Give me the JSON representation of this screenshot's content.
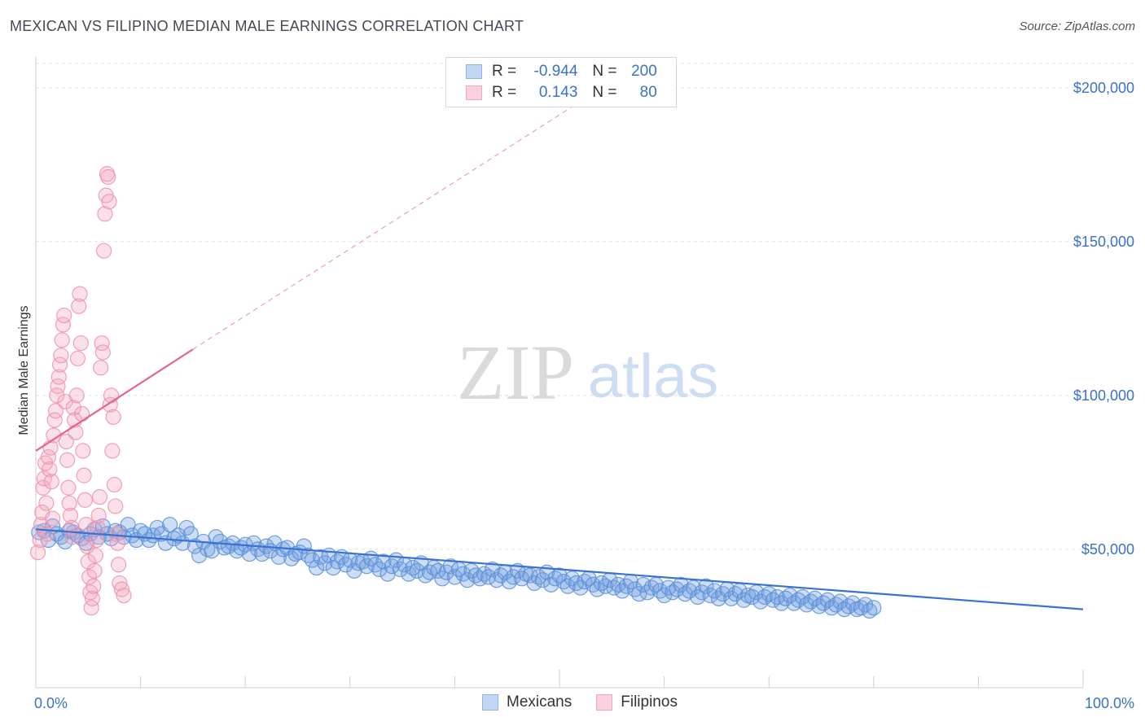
{
  "title": "MEXICAN VS FILIPINO MEDIAN MALE EARNINGS CORRELATION CHART",
  "source": "Source: ZipAtlas.com",
  "watermark": {
    "zip": "ZIP",
    "atlas": "atlas"
  },
  "legend": {
    "r_label": "R =",
    "n_label": "N =",
    "rows": [
      {
        "r": "-0.944",
        "n": "200",
        "color": "#8fb4ea"
      },
      {
        "r": "0.143",
        "n": "80",
        "color": "#f4a6be"
      }
    ]
  },
  "bottom_legend": [
    {
      "label": "Mexicans",
      "color": "#8fb4ea"
    },
    {
      "label": "Filipinos",
      "color": "#f4a6be"
    }
  ],
  "chart_data": {
    "type": "scatter",
    "title": "MEXICAN VS FILIPINO MEDIAN MALE EARNINGS CORRELATION CHART",
    "xlabel": "",
    "ylabel": "Median Male Earnings",
    "xlim": [
      0,
      100
    ],
    "ylim": [
      5000,
      210000
    ],
    "x_tick_labels": [
      "0.0%",
      "100.0%"
    ],
    "y_ticks": [
      50000,
      100000,
      150000,
      200000
    ],
    "y_tick_labels": [
      "$50,000",
      "$100,000",
      "$150,000",
      "$200,000"
    ],
    "grid": true,
    "series": [
      {
        "name": "Mexicans",
        "color": "#6f9fe0",
        "stroke": "#5b8fd8",
        "trend": {
          "x": [
            0,
            100
          ],
          "y": [
            56500,
            30500
          ],
          "color": "#3a72d0"
        },
        "points": [
          [
            0.3,
            55500
          ],
          [
            0.8,
            56000
          ],
          [
            1.2,
            53000
          ],
          [
            1.6,
            57500
          ],
          [
            2.0,
            55000
          ],
          [
            2.4,
            54000
          ],
          [
            2.8,
            52500
          ],
          [
            3.2,
            56000
          ],
          [
            3.6,
            55500
          ],
          [
            4.0,
            54500
          ],
          [
            4.4,
            53500
          ],
          [
            4.8,
            52000
          ],
          [
            5.2,
            55000
          ],
          [
            5.6,
            56500
          ],
          [
            6.0,
            54000
          ],
          [
            6.4,
            57500
          ],
          [
            6.8,
            55000
          ],
          [
            7.2,
            53500
          ],
          [
            7.6,
            56000
          ],
          [
            8.0,
            55500
          ],
          [
            8.4,
            54000
          ],
          [
            8.8,
            58000
          ],
          [
            9.2,
            54500
          ],
          [
            9.6,
            53000
          ],
          [
            10.0,
            56000
          ],
          [
            10.4,
            55000
          ],
          [
            10.8,
            53000
          ],
          [
            11.2,
            54500
          ],
          [
            11.6,
            57000
          ],
          [
            12.0,
            55000
          ],
          [
            12.4,
            52000
          ],
          [
            12.8,
            58000
          ],
          [
            13.2,
            53500
          ],
          [
            13.6,
            54500
          ],
          [
            14.0,
            52000
          ],
          [
            14.4,
            57000
          ],
          [
            14.8,
            55000
          ],
          [
            15.2,
            51000
          ],
          [
            15.6,
            48000
          ],
          [
            16.0,
            52500
          ],
          [
            16.4,
            50000
          ],
          [
            16.8,
            49500
          ],
          [
            17.2,
            54000
          ],
          [
            17.6,
            52500
          ],
          [
            18.0,
            50500
          ],
          [
            18.4,
            51000
          ],
          [
            18.8,
            52000
          ],
          [
            19.2,
            49500
          ],
          [
            19.6,
            50500
          ],
          [
            20.0,
            51500
          ],
          [
            20.4,
            48500
          ],
          [
            20.8,
            52000
          ],
          [
            21.2,
            50000
          ],
          [
            21.6,
            48500
          ],
          [
            22.0,
            51000
          ],
          [
            22.4,
            49500
          ],
          [
            22.8,
            52000
          ],
          [
            23.2,
            47500
          ],
          [
            23.6,
            50000
          ],
          [
            24.0,
            50500
          ],
          [
            24.4,
            47000
          ],
          [
            24.8,
            48500
          ],
          [
            25.2,
            49000
          ],
          [
            25.6,
            51000
          ],
          [
            26.0,
            48000
          ],
          [
            26.4,
            46500
          ],
          [
            26.8,
            44000
          ],
          [
            27.2,
            47500
          ],
          [
            27.6,
            45500
          ],
          [
            28.0,
            48000
          ],
          [
            28.4,
            44000
          ],
          [
            28.8,
            46000
          ],
          [
            29.2,
            47500
          ],
          [
            29.6,
            45000
          ],
          [
            30.0,
            46500
          ],
          [
            30.4,
            43000
          ],
          [
            30.8,
            45500
          ],
          [
            31.2,
            46000
          ],
          [
            31.6,
            44500
          ],
          [
            32.0,
            47000
          ],
          [
            32.4,
            45000
          ],
          [
            32.8,
            43500
          ],
          [
            33.2,
            46000
          ],
          [
            33.6,
            42000
          ],
          [
            34.0,
            44500
          ],
          [
            34.4,
            46500
          ],
          [
            34.8,
            43500
          ],
          [
            35.2,
            45000
          ],
          [
            35.6,
            42000
          ],
          [
            36.0,
            44000
          ],
          [
            36.4,
            43000
          ],
          [
            36.8,
            45500
          ],
          [
            37.2,
            41500
          ],
          [
            37.6,
            42500
          ],
          [
            38.0,
            44000
          ],
          [
            38.4,
            43000
          ],
          [
            38.8,
            40500
          ],
          [
            39.2,
            42500
          ],
          [
            39.6,
            44500
          ],
          [
            40.0,
            41000
          ],
          [
            40.4,
            43500
          ],
          [
            40.8,
            42000
          ],
          [
            41.2,
            40000
          ],
          [
            41.6,
            43000
          ],
          [
            42.0,
            41500
          ],
          [
            42.4,
            40500
          ],
          [
            42.8,
            42000
          ],
          [
            43.2,
            41000
          ],
          [
            43.6,
            43500
          ],
          [
            44.0,
            40000
          ],
          [
            44.4,
            41500
          ],
          [
            44.8,
            42500
          ],
          [
            45.2,
            39500
          ],
          [
            45.6,
            41000
          ],
          [
            46.0,
            43000
          ],
          [
            46.4,
            40500
          ],
          [
            46.8,
            42000
          ],
          [
            47.2,
            41500
          ],
          [
            47.6,
            39000
          ],
          [
            48.0,
            41000
          ],
          [
            48.4,
            40000
          ],
          [
            48.8,
            42500
          ],
          [
            49.2,
            38500
          ],
          [
            49.6,
            40500
          ],
          [
            50.0,
            41500
          ],
          [
            50.4,
            39500
          ],
          [
            50.8,
            38000
          ],
          [
            51.2,
            40500
          ],
          [
            51.6,
            39000
          ],
          [
            52.0,
            37500
          ],
          [
            52.4,
            39500
          ],
          [
            52.8,
            40500
          ],
          [
            53.2,
            38500
          ],
          [
            53.6,
            37000
          ],
          [
            54.0,
            39000
          ],
          [
            54.4,
            38000
          ],
          [
            54.8,
            40000
          ],
          [
            55.2,
            37500
          ],
          [
            55.6,
            38500
          ],
          [
            56.0,
            36500
          ],
          [
            56.4,
            38000
          ],
          [
            56.8,
            39500
          ],
          [
            57.2,
            37000
          ],
          [
            57.6,
            35500
          ],
          [
            58.0,
            38500
          ],
          [
            58.4,
            36000
          ],
          [
            58.8,
            37500
          ],
          [
            59.2,
            38500
          ],
          [
            59.6,
            36500
          ],
          [
            60.0,
            35000
          ],
          [
            60.4,
            37500
          ],
          [
            60.8,
            36000
          ],
          [
            61.2,
            37000
          ],
          [
            61.6,
            38500
          ],
          [
            62.0,
            35500
          ],
          [
            62.4,
            36500
          ],
          [
            62.8,
            37500
          ],
          [
            63.2,
            34500
          ],
          [
            63.6,
            36000
          ],
          [
            64.0,
            38000
          ],
          [
            64.4,
            35000
          ],
          [
            64.8,
            36500
          ],
          [
            65.2,
            34000
          ],
          [
            65.6,
            35500
          ],
          [
            66.0,
            37000
          ],
          [
            66.4,
            34000
          ],
          [
            66.8,
            35500
          ],
          [
            67.2,
            36500
          ],
          [
            67.6,
            33500
          ],
          [
            68.0,
            35000
          ],
          [
            68.4,
            34500
          ],
          [
            68.8,
            36000
          ],
          [
            69.2,
            33000
          ],
          [
            69.6,
            34500
          ],
          [
            70.0,
            35500
          ],
          [
            70.4,
            33500
          ],
          [
            70.8,
            34500
          ],
          [
            71.2,
            32500
          ],
          [
            71.6,
            34000
          ],
          [
            72.0,
            35000
          ],
          [
            72.4,
            32500
          ],
          [
            72.8,
            33500
          ],
          [
            73.2,
            34500
          ],
          [
            73.6,
            32000
          ],
          [
            74.0,
            33000
          ],
          [
            74.4,
            34000
          ],
          [
            74.8,
            31500
          ],
          [
            75.2,
            32500
          ],
          [
            75.6,
            33500
          ],
          [
            76.0,
            31000
          ],
          [
            76.4,
            32000
          ],
          [
            76.8,
            33000
          ],
          [
            77.2,
            30500
          ],
          [
            77.6,
            31500
          ],
          [
            78.0,
            32500
          ],
          [
            78.4,
            30500
          ],
          [
            78.8,
            31000
          ],
          [
            79.2,
            32000
          ],
          [
            79.6,
            30000
          ],
          [
            80.0,
            31000
          ]
        ]
      },
      {
        "name": "Filipinos",
        "color": "#f4a6be",
        "stroke": "#ee8fae",
        "trend": {
          "x": [
            0,
            15
          ],
          "y": [
            82000,
            115000
          ],
          "color": "#e06691"
        },
        "trend_extension": {
          "x": [
            15,
            100
          ],
          "y": [
            115000,
            300000
          ],
          "color": "#e8a0b8"
        },
        "points": [
          [
            0.2,
            49000
          ],
          [
            0.4,
            53000
          ],
          [
            0.5,
            58000
          ],
          [
            0.6,
            62000
          ],
          [
            0.7,
            70000
          ],
          [
            0.8,
            73000
          ],
          [
            0.9,
            78000
          ],
          [
            1.0,
            65000
          ],
          [
            1.1,
            55000
          ],
          [
            1.2,
            80000
          ],
          [
            1.3,
            76000
          ],
          [
            1.4,
            83000
          ],
          [
            1.5,
            72000
          ],
          [
            1.6,
            60000
          ],
          [
            1.7,
            87000
          ],
          [
            1.8,
            92000
          ],
          [
            1.9,
            95000
          ],
          [
            2.0,
            100000
          ],
          [
            2.1,
            103000
          ],
          [
            2.2,
            106000
          ],
          [
            2.3,
            110000
          ],
          [
            2.4,
            113000
          ],
          [
            2.5,
            118000
          ],
          [
            2.6,
            123000
          ],
          [
            2.7,
            126000
          ],
          [
            2.8,
            98000
          ],
          [
            2.9,
            85000
          ],
          [
            3.0,
            79000
          ],
          [
            3.1,
            70000
          ],
          [
            3.2,
            65000
          ],
          [
            3.3,
            61000
          ],
          [
            3.4,
            57000
          ],
          [
            3.5,
            54000
          ],
          [
            3.6,
            96000
          ],
          [
            3.7,
            92000
          ],
          [
            3.8,
            88000
          ],
          [
            3.9,
            100000
          ],
          [
            4.0,
            112000
          ],
          [
            4.1,
            129000
          ],
          [
            4.2,
            133000
          ],
          [
            4.3,
            117000
          ],
          [
            4.4,
            94000
          ],
          [
            4.5,
            82000
          ],
          [
            4.6,
            74000
          ],
          [
            4.7,
            66000
          ],
          [
            4.8,
            58000
          ],
          [
            4.9,
            51000
          ],
          [
            5.0,
            46000
          ],
          [
            5.1,
            41000
          ],
          [
            5.2,
            36000
          ],
          [
            5.3,
            31000
          ],
          [
            5.4,
            34000
          ],
          [
            5.5,
            38000
          ],
          [
            5.6,
            43000
          ],
          [
            5.7,
            48000
          ],
          [
            5.8,
            53000
          ],
          [
            5.9,
            57000
          ],
          [
            6.0,
            61000
          ],
          [
            6.1,
            67000
          ],
          [
            6.2,
            109000
          ],
          [
            6.3,
            117000
          ],
          [
            6.4,
            114000
          ],
          [
            6.5,
            147000
          ],
          [
            6.6,
            159000
          ],
          [
            6.7,
            165000
          ],
          [
            6.8,
            172000
          ],
          [
            6.9,
            171000
          ],
          [
            7.0,
            163000
          ],
          [
            7.1,
            97000
          ],
          [
            7.2,
            100000
          ],
          [
            7.3,
            82000
          ],
          [
            7.4,
            93000
          ],
          [
            7.5,
            71000
          ],
          [
            7.6,
            64000
          ],
          [
            7.7,
            55000
          ],
          [
            7.8,
            52000
          ],
          [
            7.9,
            45000
          ],
          [
            8.0,
            39000
          ],
          [
            8.2,
            37000
          ],
          [
            8.4,
            35000
          ]
        ]
      }
    ]
  }
}
